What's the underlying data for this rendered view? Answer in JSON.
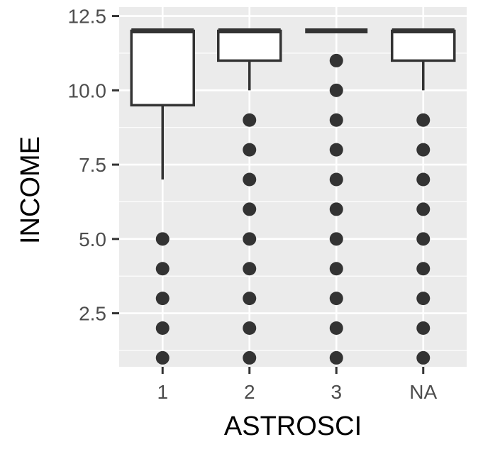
{
  "chart_data": {
    "type": "box",
    "xlabel": "ASTROSCI",
    "ylabel": "INCOME",
    "ylim": [
      0.7,
      12.8
    ],
    "yticks": [
      2.5,
      5.0,
      7.5,
      10.0,
      12.5
    ],
    "ytick_labels": [
      "2.5",
      "5.0",
      "7.5",
      "10.0",
      "12.5"
    ],
    "categories": [
      "1",
      "2",
      "3",
      "NA"
    ],
    "boxes": [
      {
        "category": "1",
        "q1": 9.5,
        "median": 12,
        "q3": 12,
        "whisker_low": 7,
        "whisker_high": 12,
        "outliers": [
          1,
          2,
          3,
          4,
          5
        ]
      },
      {
        "category": "2",
        "q1": 11,
        "median": 12,
        "q3": 12,
        "whisker_low": 10,
        "whisker_high": 12,
        "outliers": [
          1,
          2,
          3,
          4,
          5,
          6,
          7,
          8,
          9
        ]
      },
      {
        "category": "3",
        "q1": 12,
        "median": 12,
        "q3": 12,
        "whisker_low": 12,
        "whisker_high": 12,
        "outliers": [
          1,
          2,
          3,
          4,
          5,
          6,
          7,
          8,
          9,
          10,
          11
        ]
      },
      {
        "category": "NA",
        "q1": 11,
        "median": 12,
        "q3": 12,
        "whisker_low": 10,
        "whisker_high": 12,
        "outliers": [
          1,
          2,
          3,
          4,
          5,
          6,
          7,
          8,
          9
        ]
      }
    ],
    "grid": true,
    "colors": {
      "panel": "#ebebeb",
      "grid": "#ffffff",
      "box_fill": "#ffffff",
      "line": "#333333",
      "point": "#333333",
      "tick": "#333333"
    }
  }
}
